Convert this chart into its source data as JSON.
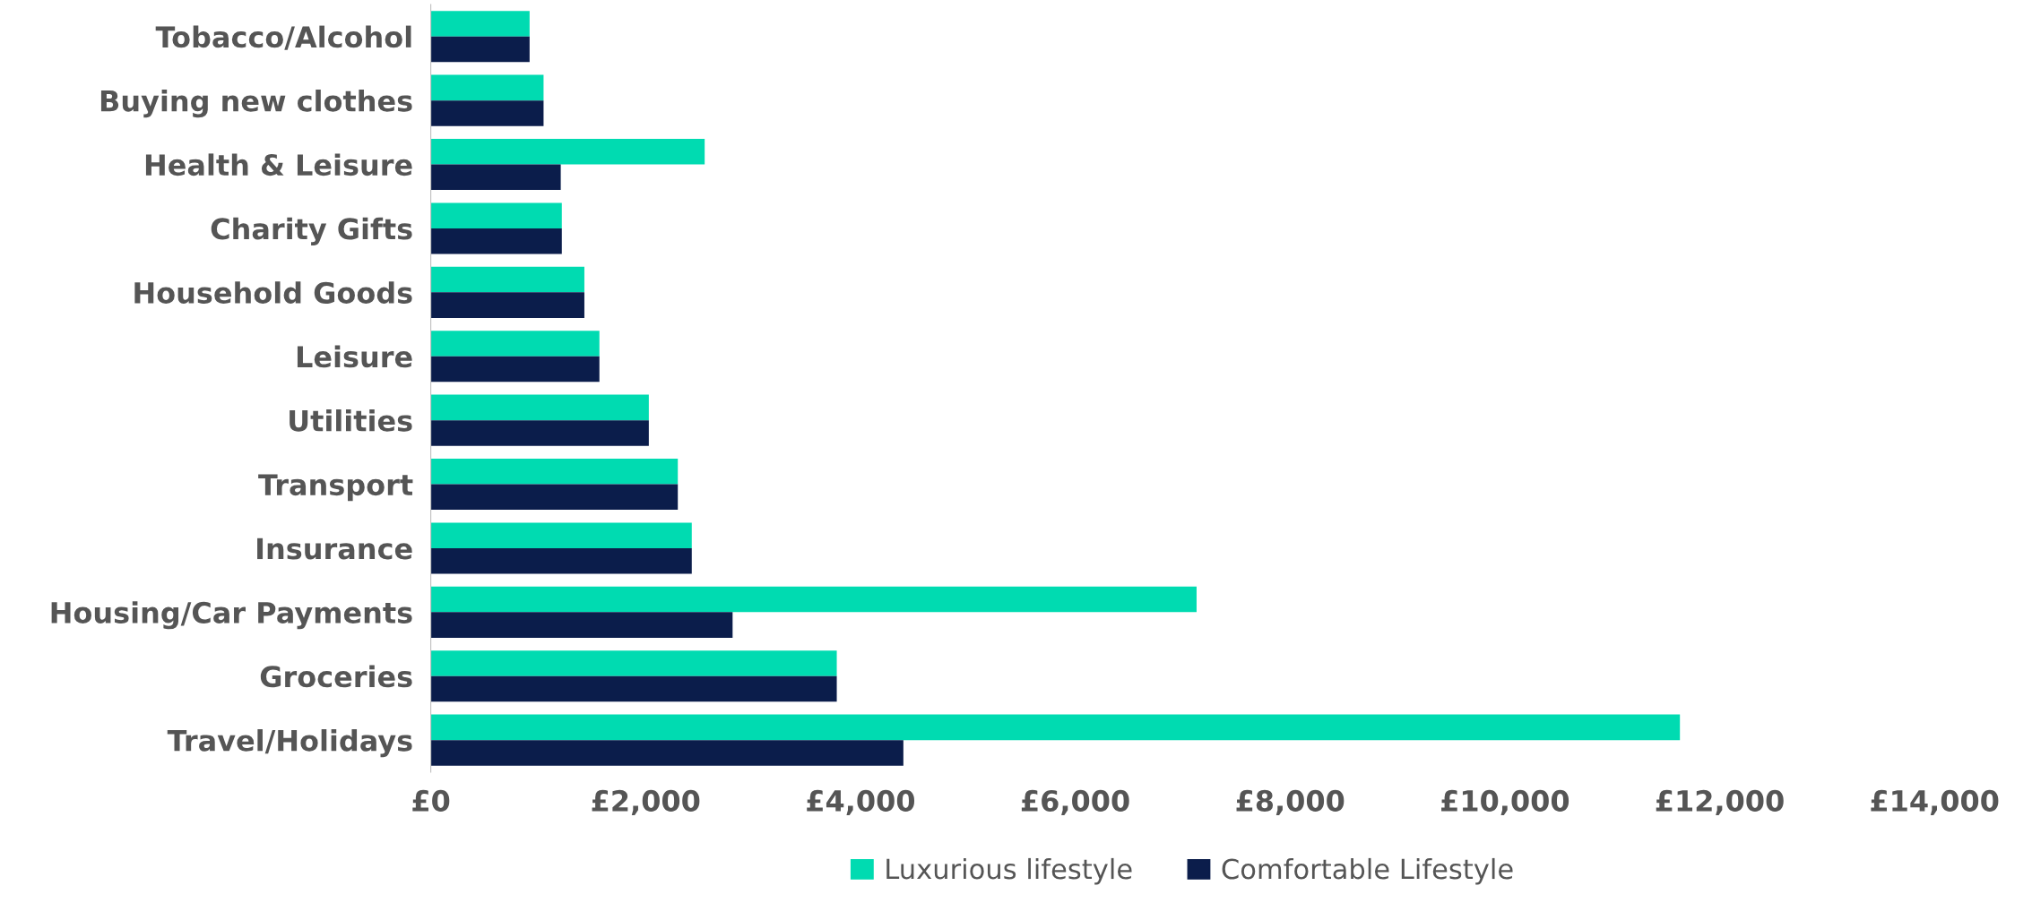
{
  "chart_data": {
    "type": "bar",
    "orientation": "horizontal",
    "categories": [
      "Tobacco/Alcohol",
      "Buying new clothes",
      "Health & Leisure",
      "Charity Gifts",
      "Household Goods",
      "Leisure",
      "Utilities",
      "Transport",
      "Insurance",
      "Housing/Car Payments",
      "Groceries",
      "Travel/Holidays"
    ],
    "series": [
      {
        "name": "Luxurious lifestyle",
        "color": "#00dbb1",
        "values": [
          920,
          1050,
          2550,
          1220,
          1430,
          1570,
          2030,
          2300,
          2430,
          7130,
          3780,
          11630
        ]
      },
      {
        "name": "Comfortable Lifestyle",
        "color": "#0b1d4b",
        "values": [
          920,
          1050,
          1210,
          1220,
          1430,
          1570,
          2030,
          2300,
          2430,
          2810,
          3780,
          4400
        ]
      }
    ],
    "xlim": [
      0,
      14000
    ],
    "xticks": [
      {
        "value": 0,
        "label": "£0"
      },
      {
        "value": 2000,
        "label": "£2,000"
      },
      {
        "value": 4000,
        "label": "£4,000"
      },
      {
        "value": 6000,
        "label": "£6,000"
      },
      {
        "value": 8000,
        "label": "£8,000"
      },
      {
        "value": 10000,
        "label": "£10,000"
      },
      {
        "value": 12000,
        "label": "£12,000"
      },
      {
        "value": 14000,
        "label": "£14,000"
      }
    ],
    "grid": false,
    "legend": "bottom"
  }
}
